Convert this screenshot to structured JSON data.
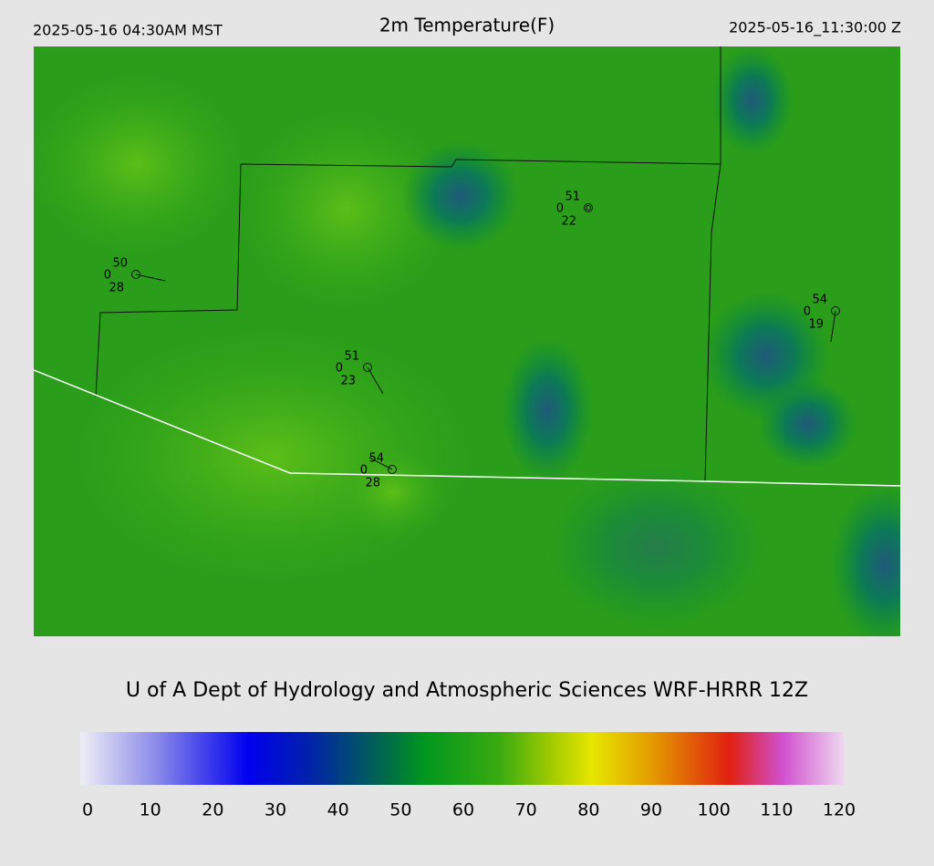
{
  "header": {
    "local_time": "2025-05-16 04:30AM MST",
    "title": "2m Temperature(F)",
    "utc_time": "2025-05-16_11:30:00 Z"
  },
  "stations": [
    {
      "temperature": "51",
      "left": "0",
      "bottom": "22"
    },
    {
      "temperature": "50",
      "left": "0",
      "bottom": "28"
    },
    {
      "temperature": "51",
      "left": "0",
      "bottom": "23"
    },
    {
      "temperature": "54",
      "left": "0",
      "bottom": "28"
    },
    {
      "temperature": "54",
      "left": "0",
      "bottom": "19"
    }
  ],
  "credit": "U of A Dept of Hydrology and Atmospheric Sciences WRF-HRRR 12Z",
  "colorbar": {
    "lim": [
      0,
      120
    ],
    "ticks": [
      0,
      10,
      20,
      30,
      40,
      50,
      60,
      70,
      80,
      90,
      100,
      110,
      120
    ]
  }
}
